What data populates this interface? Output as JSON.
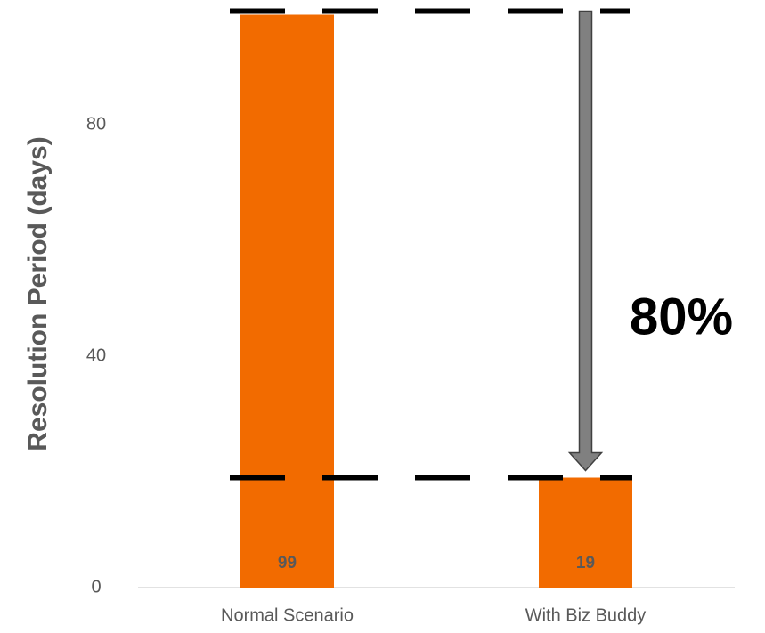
{
  "chart_data": {
    "type": "bar",
    "y_label": "Resolution Period (days)",
    "categories": [
      "Normal Scenario",
      "With Biz Buddy"
    ],
    "values": [
      99,
      19
    ],
    "color": "#f26b00",
    "ylim": [
      0,
      100
    ],
    "yticks": [
      0,
      40,
      80
    ],
    "annotation": "80%"
  }
}
